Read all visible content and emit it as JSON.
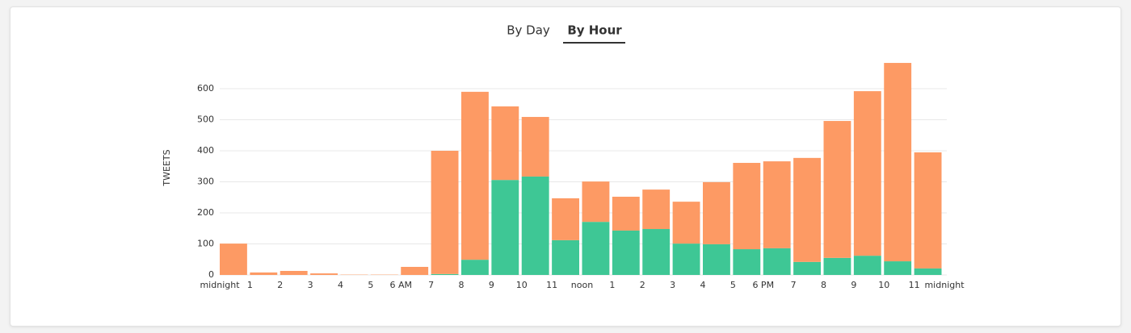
{
  "tabs": [
    "By Day",
    "By Hour"
  ],
  "chart_data": {
    "type": "stacked_bar",
    "y_label": "TWEETS",
    "edge_labels": [
      "midnight",
      "1",
      "2",
      "3",
      "4",
      "5",
      "6 AM",
      "7",
      "8",
      "9",
      "10",
      "11",
      "noon",
      "1",
      "2",
      "3",
      "4",
      "5",
      "6 PM",
      "7",
      "8",
      "9",
      "10",
      "11",
      "midnight"
    ],
    "series": [
      {
        "color": "#3ec795",
        "values": [
          0,
          0,
          0,
          0,
          0,
          0,
          0,
          3,
          49,
          306,
          317,
          112,
          171,
          143,
          148,
          101,
          99,
          83,
          86,
          42,
          55,
          62,
          44,
          21
        ]
      },
      {
        "color": "#fd9a64",
        "values": [
          101,
          8,
          13,
          5,
          1,
          1,
          26,
          397,
          541,
          237,
          192,
          135,
          130,
          109,
          127,
          135,
          200,
          278,
          280,
          335,
          441,
          530,
          639,
          374
        ]
      }
    ],
    "ylim": [
      0,
      700
    ],
    "yticks": [
      0,
      100,
      200,
      300,
      400,
      500,
      600
    ],
    "grid": true
  }
}
